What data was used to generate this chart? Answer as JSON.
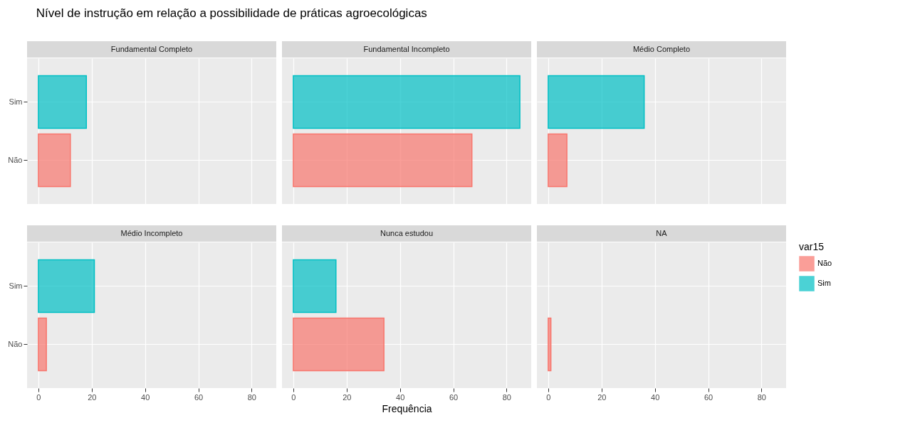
{
  "chart_data": [
    {
      "type": "bar",
      "orientation": "horizontal",
      "title": "Fundamental Completo",
      "annotations": [
        "Nível de instrução em relação a possibilidade de práticas agroecológicas"
      ],
      "categories": [
        "Sim",
        "Não"
      ],
      "xlim": [
        -4.25,
        89.25
      ],
      "xticks": [
        0,
        20,
        40,
        60,
        80
      ],
      "grid": true,
      "tick_labels": "y",
      "values": [
        18,
        12
      ],
      "colors": [
        "#00bfc4",
        "#f8766d"
      ]
    },
    {
      "type": "bar",
      "orientation": "horizontal",
      "title": "Fundamental Incompleto",
      "categories": [
        null,
        null
      ],
      "xlim": [
        -4.25,
        89.25
      ],
      "xticks": [
        0,
        20,
        40,
        60,
        80
      ],
      "grid": true,
      "tick_labels": false,
      "values": [
        85,
        67
      ],
      "colors": [
        "#00bfc4",
        "#f8766d"
      ]
    },
    {
      "type": "bar",
      "orientation": "horizontal",
      "title": "Médio Completo",
      "categories": [
        null,
        null
      ],
      "xlim": [
        -4.25,
        89.25
      ],
      "xticks": [
        0,
        20,
        40,
        60,
        80
      ],
      "grid": true,
      "tick_labels": false,
      "values": [
        36,
        7
      ],
      "colors": [
        "#00bfc4",
        "#f8766d"
      ]
    },
    {
      "type": "bar",
      "orientation": "horizontal",
      "title": "Médio Incompleto",
      "categories": [
        "Sim",
        "Não"
      ],
      "xlim": [
        -4.25,
        89.25
      ],
      "xticks": [
        0,
        20,
        40,
        60,
        80
      ],
      "grid": true,
      "values": [
        21,
        3
      ],
      "colors": [
        "#00bfc4",
        "#f8766d"
      ]
    },
    {
      "type": "bar",
      "orientation": "horizontal",
      "title": "Nunca estudou",
      "xlabel": "Frequência",
      "categories": [
        null,
        null
      ],
      "xlim": [
        -4.25,
        89.25
      ],
      "xticks": [
        0,
        20,
        40,
        60,
        80
      ],
      "grid": true,
      "tick_labels": "x",
      "values": [
        16,
        34
      ],
      "colors": [
        "#00bfc4",
        "#f8766d"
      ]
    },
    {
      "type": "bar",
      "orientation": "horizontal",
      "title": "NA",
      "categories": [
        null,
        null
      ],
      "xlim": [
        -4.25,
        89.25
      ],
      "xticks": [
        0,
        20,
        40,
        60,
        80
      ],
      "grid": true,
      "tick_labels": "x",
      "legend": "right",
      "legend_title": "var15",
      "series": [
        {
          "name": "Não",
          "color": "#f8766d",
          "values": [
            null,
            1
          ]
        },
        {
          "name": "Sim",
          "color": "#00bfc4",
          "values": [
            null,
            null
          ]
        }
      ]
    }
  ]
}
